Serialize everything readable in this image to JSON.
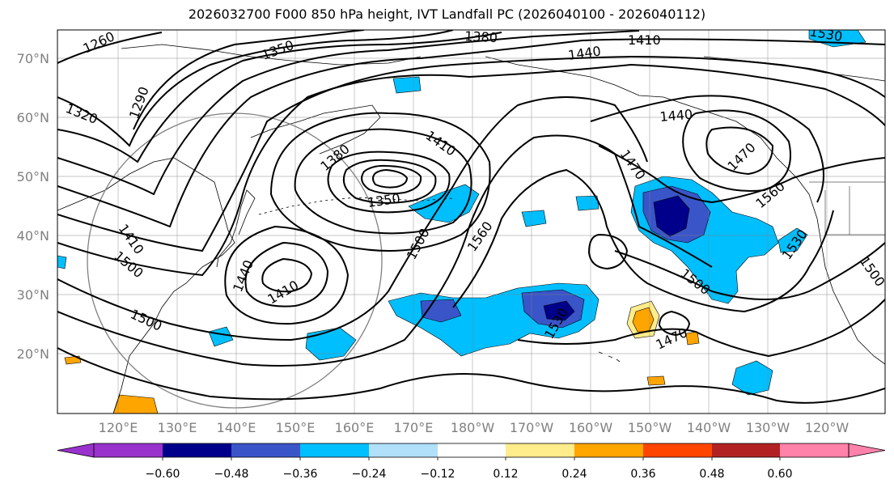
{
  "title": "2026032700 F000 850 hPa height, IVT Landfall PC (2026040100 - 2026040112)",
  "map": {
    "projection": "cylindrical",
    "lat_range": [
      10,
      75
    ],
    "lon_range": [
      110,
      250
    ],
    "lat_ticks": [
      "20°N",
      "30°N",
      "40°N",
      "50°N",
      "60°N",
      "70°N"
    ],
    "lon_ticks": [
      "120°E",
      "130°E",
      "140°E",
      "150°E",
      "160°E",
      "170°E",
      "180°W",
      "170°W",
      "160°W",
      "150°W",
      "140°W",
      "130°W",
      "120°W"
    ],
    "grid": true,
    "contour_labels": [
      "1260",
      "1290",
      "1320",
      "1350",
      "1380",
      "1410",
      "1440",
      "1410",
      "1380",
      "1350",
      "1410",
      "1500",
      "1560",
      "1470",
      "1500",
      "1440",
      "1410",
      "1500",
      "1530",
      "1470",
      "1440",
      "1560",
      "1530",
      "1500",
      "1500",
      "1470",
      "1530",
      "1500"
    ]
  },
  "colorbar": {
    "ticks": [
      "−0.60",
      "−0.48",
      "−0.36",
      "−0.24",
      "−0.12",
      "0.12",
      "0.24",
      "0.36",
      "0.48",
      "0.60"
    ],
    "colors": [
      "#9932cc",
      "#00008b",
      "#3a55c8",
      "#00bfff",
      "#b0e0fa",
      "#ffffff",
      "#ffec8b",
      "#ffa500",
      "#ff4500",
      "#b22222",
      "#ff82ab",
      "#ff82ab"
    ]
  },
  "fill_colors": {
    "deep_blue": "#00008b",
    "mid_blue": "#3a55c8",
    "sky_blue": "#00bfff",
    "light_blue": "#b0e0fa",
    "orange": "#ffa500",
    "gold": "#ffec8b"
  }
}
